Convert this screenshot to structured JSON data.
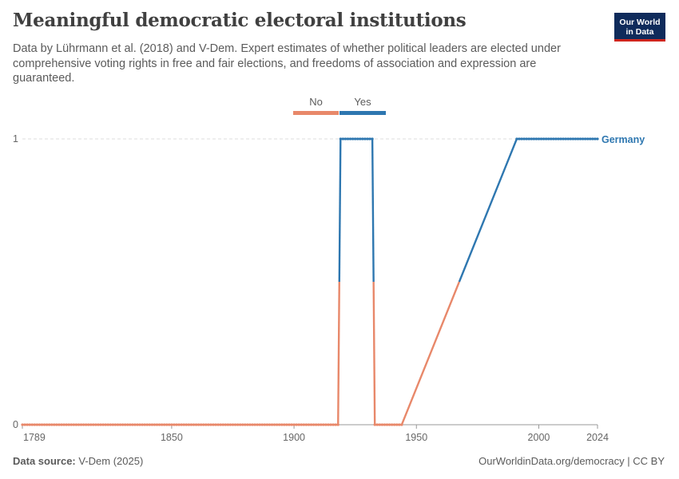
{
  "header": {
    "title": "Meaningful democratic electoral institutions",
    "subtitle": "Data by Lührmann et al. (2018) and V-Dem. Expert estimates of whether political leaders are elected under comprehensive voting rights in free and fair elections, and freedoms of association and expression are guaranteed.",
    "logo_line1": "Our World",
    "logo_line2": "in Data"
  },
  "legend": {
    "items": [
      {
        "label": "No",
        "color": "#e8886a"
      },
      {
        "label": "Yes",
        "color": "#2e77b0"
      }
    ]
  },
  "footer": {
    "source_label": "Data source:",
    "source_value": "V-Dem (2025)",
    "credit": "OurWorldinData.org/democracy | CC BY"
  },
  "chart_data": {
    "type": "line",
    "title": "Meaningful democratic electoral institutions",
    "xlabel": "",
    "ylabel": "",
    "xlim": [
      1789,
      2024
    ],
    "ylim": [
      0,
      1
    ],
    "x_ticks": [
      1789,
      1850,
      1900,
      1950,
      2000,
      2024
    ],
    "y_ticks": [
      0,
      1
    ],
    "grid": "horizontal dashed",
    "color_scale": {
      "0": "No",
      "1": "Yes"
    },
    "colors": {
      "no": "#e8886a",
      "yes": "#2e77b0"
    },
    "series": [
      {
        "name": "Germany",
        "segments": [
          {
            "from": 1789,
            "to": 1918,
            "value": 0
          },
          {
            "from": 1919,
            "to": 1932,
            "value": 1
          },
          {
            "from": 1933,
            "to": 1944,
            "value": 0
          },
          {
            "from": 1991,
            "to": 2024,
            "value": 1
          }
        ],
        "interpolated": [
          {
            "x0": 1918,
            "y0": 0,
            "x1": 1919,
            "y1": 1
          },
          {
            "x0": 1932,
            "y0": 1,
            "x1": 1933,
            "y1": 0
          },
          {
            "x0": 1944,
            "y0": 0,
            "x1": 1991,
            "y1": 1
          }
        ]
      }
    ]
  }
}
